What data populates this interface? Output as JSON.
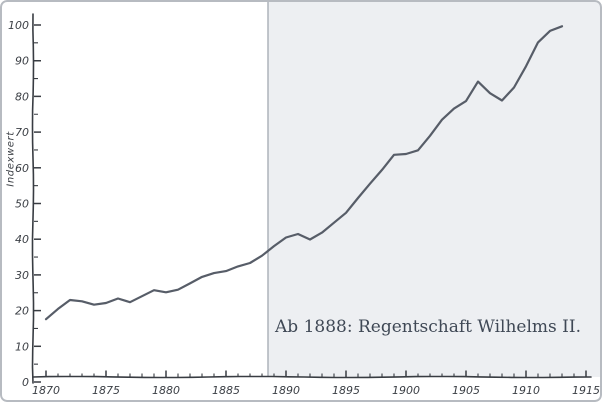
{
  "figure": {
    "background": "#ffffff",
    "border_color": "#b7bbc1"
  },
  "chart_data": {
    "type": "line",
    "title": "",
    "xlabel": "",
    "ylabel": "Indexwert",
    "x": [
      1870,
      1871,
      1872,
      1873,
      1874,
      1875,
      1876,
      1877,
      1878,
      1879,
      1880,
      1881,
      1882,
      1883,
      1884,
      1885,
      1886,
      1887,
      1888,
      1889,
      1890,
      1891,
      1892,
      1893,
      1894,
      1895,
      1896,
      1897,
      1898,
      1899,
      1900,
      1901,
      1902,
      1903,
      1904,
      1905,
      1906,
      1907,
      1908,
      1909,
      1910,
      1911,
      1912,
      1913
    ],
    "values": [
      17.5,
      20.5,
      23,
      22.5,
      21.8,
      22,
      23.5,
      22.3,
      24,
      25.8,
      25,
      26,
      27.5,
      29.5,
      30.5,
      31,
      32.5,
      33.2,
      35.5,
      38,
      40.5,
      41.5,
      39.8,
      42,
      44.5,
      47.5,
      51.5,
      55.5,
      59.5,
      63.5,
      64,
      64.8,
      69,
      73.5,
      76.5,
      78.8,
      84,
      81,
      78.8,
      82.5,
      88.5,
      95,
      98.5,
      99.5
    ],
    "xlim": [
      1870,
      1915
    ],
    "ylim": [
      0,
      100
    ],
    "x_major_tick_step": 5,
    "x_minor_tick_step": 1,
    "y_major_tick_step": 10,
    "y_minor_tick_step": 5,
    "x_tick_labels": [
      "1870",
      "1875",
      "1880",
      "1885",
      "1890",
      "1895",
      "1900",
      "1905",
      "1910",
      "1915"
    ],
    "y_tick_labels": [
      "0",
      "10",
      "20",
      "30",
      "40",
      "50",
      "60",
      "70",
      "80",
      "90",
      "100"
    ],
    "grid": false,
    "legend": false,
    "line_color": "#575d68",
    "axis_color": "#383c42",
    "tick_label_color": "#3a3e44",
    "highlight_region": {
      "start_year": 1888,
      "label": "Ab 1888: Regentschaft Wilhelms II.",
      "label_color": "#3f4855",
      "fill": "#edeff2",
      "edge_color": "#a9aeb6"
    }
  }
}
